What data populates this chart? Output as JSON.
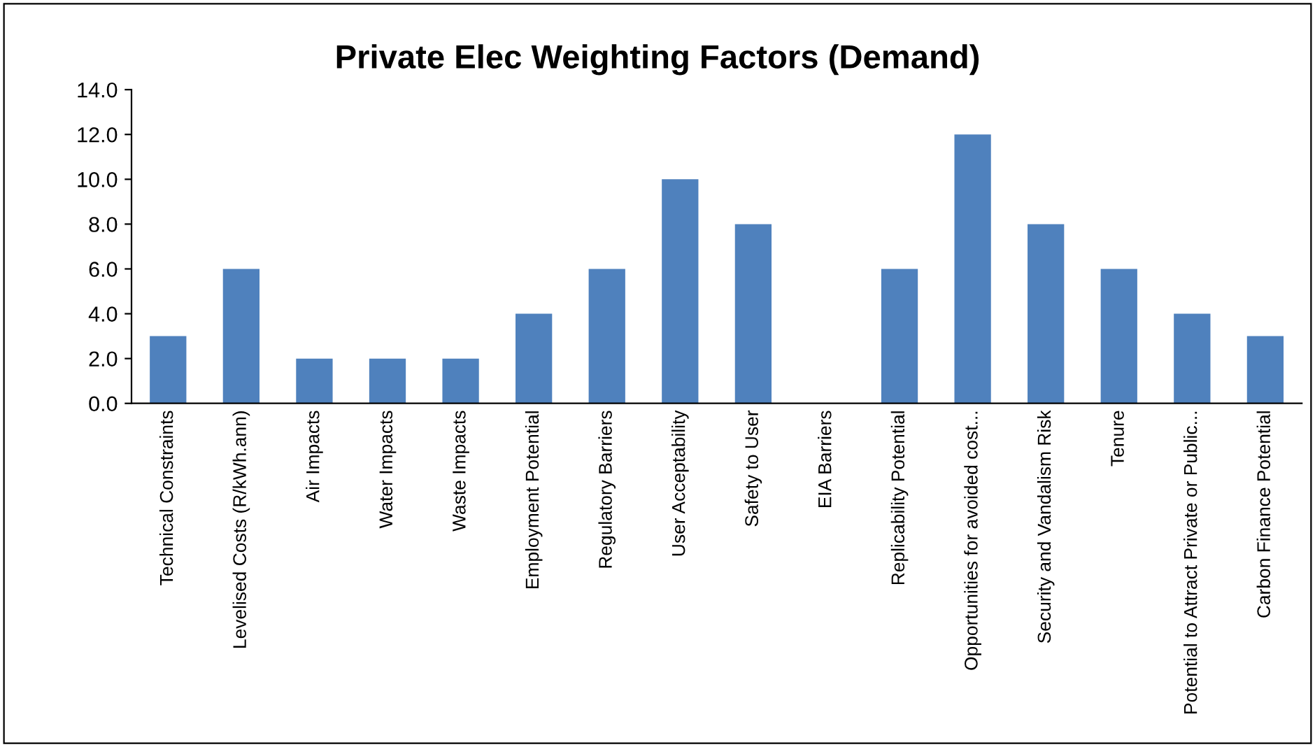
{
  "chart_data": {
    "type": "bar",
    "title": "Private Elec Weighting Factors (Demand)",
    "categories": [
      "Technical Constraints",
      "Levelised Costs (R/kWh.ann)",
      "Air Impacts",
      "Water Impacts",
      "Waste Impacts",
      "Employment Potential",
      "Regulatory Barriers",
      "User Acceptability",
      "Safety to User",
      "EIA Barriers",
      "Replicability Potential",
      "Opportunities for avoided cost...",
      "Security and Vandalism Risk",
      "Tenure",
      "Potential to Attract Private or Public...",
      "Carbon Finance Potential"
    ],
    "values": [
      3,
      6,
      2,
      2,
      2,
      4,
      6,
      10,
      8,
      0,
      6,
      12,
      8,
      6,
      4,
      3
    ],
    "color": "#4f81bd",
    "ylim": [
      0,
      14
    ],
    "yticks": [
      {
        "value": 0,
        "label": "0.0"
      },
      {
        "value": 2,
        "label": "2.0"
      },
      {
        "value": 4,
        "label": "4.0"
      },
      {
        "value": 6,
        "label": "6.0"
      },
      {
        "value": 8,
        "label": "8.0"
      },
      {
        "value": 10,
        "label": "10.0"
      },
      {
        "value": 12,
        "label": "12.0"
      },
      {
        "value": 14,
        "label": "14.0"
      }
    ],
    "grid": false,
    "legend": false
  }
}
